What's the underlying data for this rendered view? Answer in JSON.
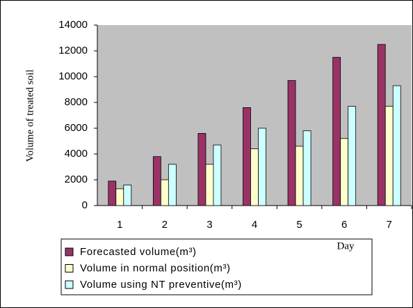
{
  "chart_data": {
    "type": "bar",
    "y_label": "Volume of treated soil",
    "x_label": "Day",
    "categories": [
      "1",
      "2",
      "3",
      "4",
      "5",
      "6",
      "7"
    ],
    "series": [
      {
        "name": "Forecasted volume(m³)",
        "color": "#993366",
        "values": [
          1900,
          3800,
          5600,
          7600,
          9700,
          11500,
          12500
        ]
      },
      {
        "name": "Volume in normal position(m³)",
        "color": "#ffffcc",
        "values": [
          1300,
          2000,
          3200,
          4400,
          4600,
          5200,
          7700
        ]
      },
      {
        "name": "Volume using NT preventive(m³)",
        "color": "#ccffff",
        "values": [
          1600,
          3200,
          4700,
          6000,
          5800,
          7700,
          9300
        ]
      }
    ],
    "ylim": [
      0,
      14000
    ],
    "yticks": [
      0,
      2000,
      4000,
      6000,
      8000,
      10000,
      12000,
      14000
    ],
    "grid": false,
    "plot_background": "#c0c0c0"
  }
}
